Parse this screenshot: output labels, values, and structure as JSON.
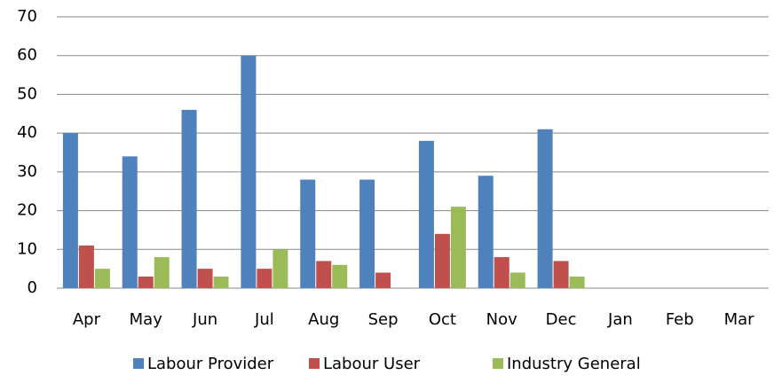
{
  "chart_data": {
    "type": "bar",
    "categories": [
      "Apr",
      "May",
      "Jun",
      "Jul",
      "Aug",
      "Sep",
      "Oct",
      "Nov",
      "Dec",
      "Jan",
      "Feb",
      "Mar"
    ],
    "series": [
      {
        "name": "Labour Provider",
        "color": "#4f81bd",
        "values": [
          40,
          34,
          46,
          60,
          28,
          28,
          38,
          29,
          41,
          null,
          null,
          null
        ]
      },
      {
        "name": "Labour User",
        "color": "#c0504d",
        "values": [
          11,
          3,
          5,
          5,
          7,
          4,
          14,
          8,
          7,
          null,
          null,
          null
        ]
      },
      {
        "name": "Industry General",
        "color": "#9bbb59",
        "values": [
          5,
          8,
          3,
          10,
          6,
          0,
          21,
          4,
          3,
          null,
          null,
          null
        ]
      }
    ],
    "ylim": [
      0,
      70
    ],
    "yticks": [
      0,
      10,
      20,
      30,
      40,
      50,
      60,
      70
    ],
    "grid": true,
    "legend": "bottom"
  }
}
